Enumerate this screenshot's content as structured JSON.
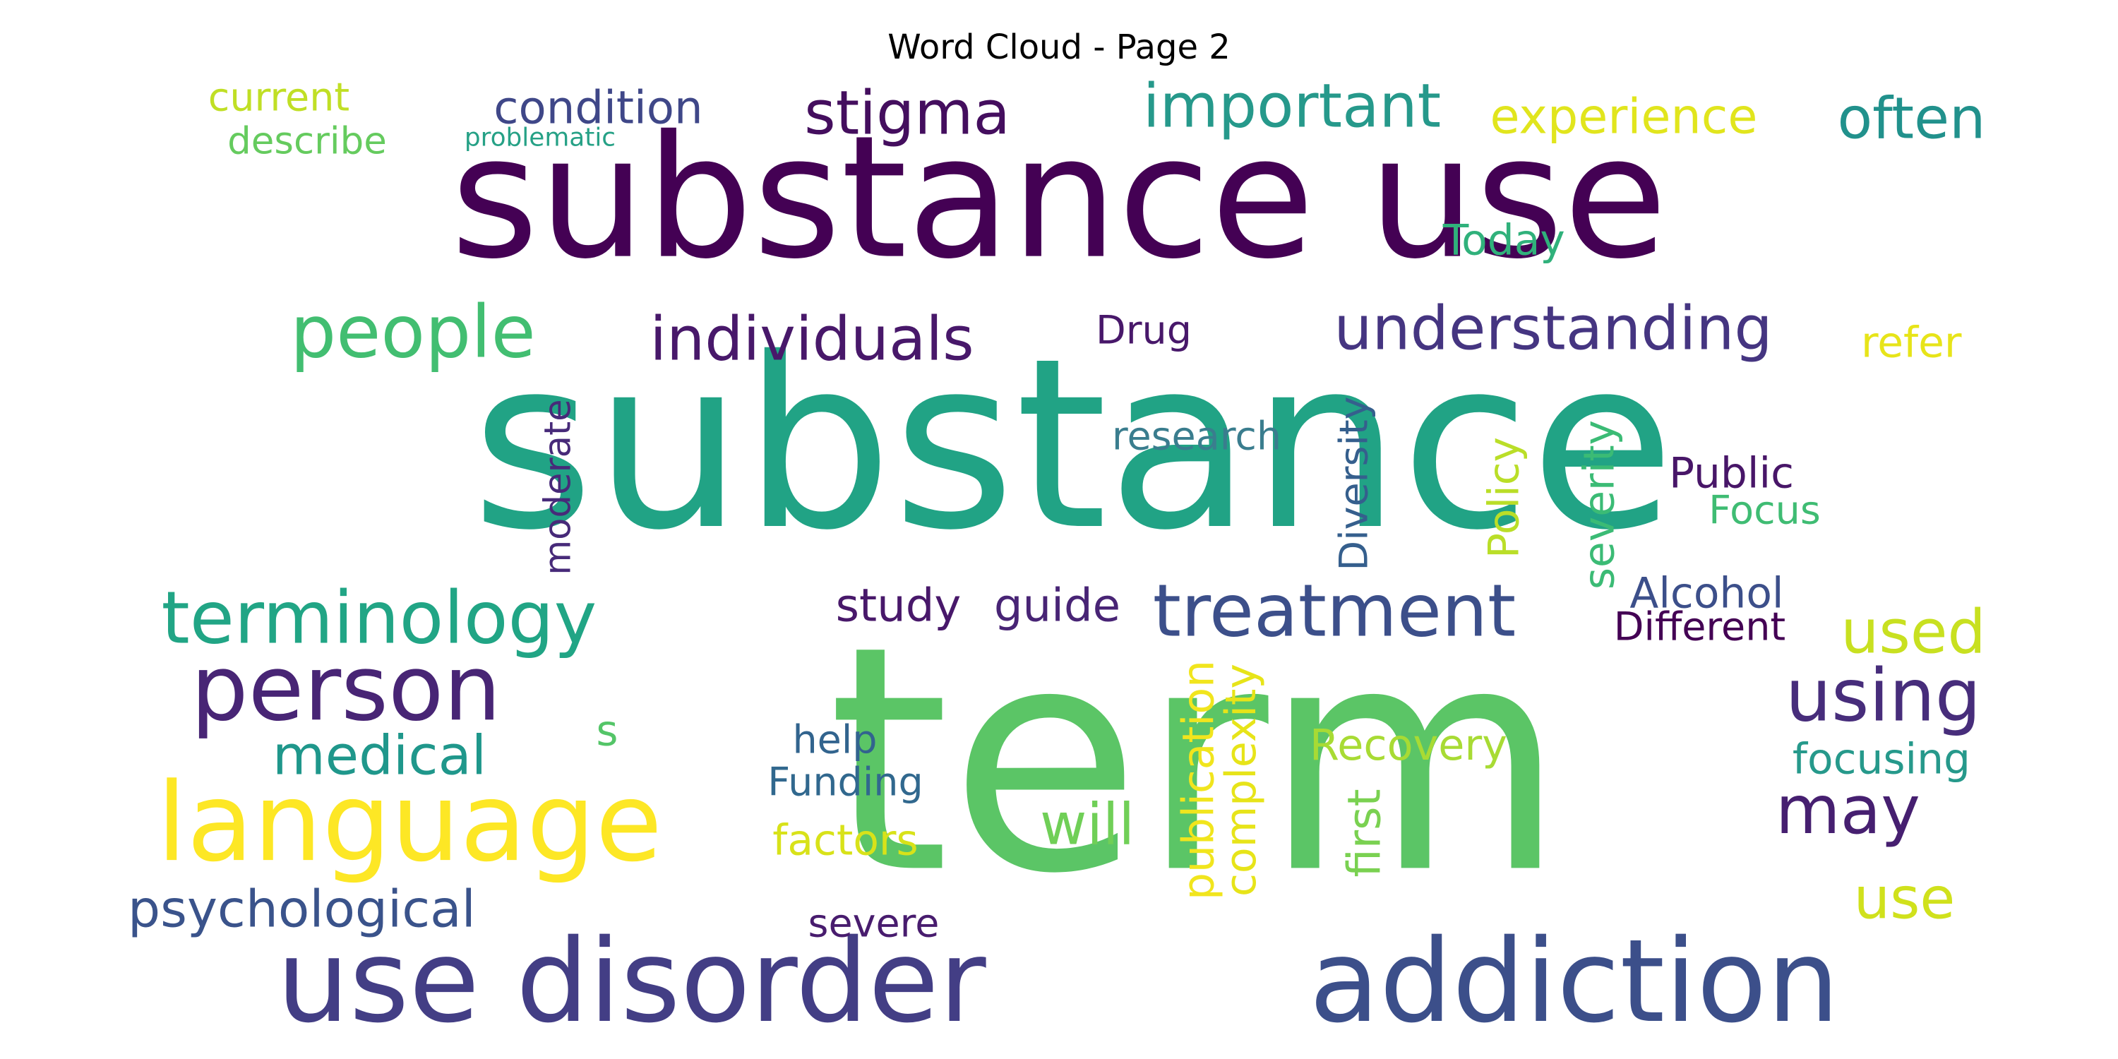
{
  "title": "Word Cloud - Page 2",
  "words": [
    {
      "text": "substance use",
      "color": "#440154"
    },
    {
      "text": "substance",
      "color": "#21a385"
    },
    {
      "text": "term",
      "color": "#5bc566"
    },
    {
      "text": "use disorder",
      "color": "#433e85"
    },
    {
      "text": "addiction",
      "color": "#3c4f8a"
    },
    {
      "text": "language",
      "color": "#fde725"
    },
    {
      "text": "person",
      "color": "#482575"
    },
    {
      "text": "terminology",
      "color": "#21a585"
    },
    {
      "text": "stigma",
      "color": "#440e5e"
    },
    {
      "text": "important",
      "color": "#26998b"
    },
    {
      "text": "often",
      "color": "#21918c"
    },
    {
      "text": "condition",
      "color": "#3f4788"
    },
    {
      "text": "experience",
      "color": "#e1e51d"
    },
    {
      "text": "current",
      "color": "#c0df25"
    },
    {
      "text": "describe",
      "color": "#65cb5e"
    },
    {
      "text": "problematic",
      "color": "#26a186"
    },
    {
      "text": "Today",
      "color": "#30b17b"
    },
    {
      "text": "people",
      "color": "#42be71"
    },
    {
      "text": "individuals",
      "color": "#48186a"
    },
    {
      "text": "understanding",
      "color": "#453581"
    },
    {
      "text": "Drug",
      "color": "#48186a"
    },
    {
      "text": "refer",
      "color": "#e7e419"
    },
    {
      "text": "research",
      "color": "#3a7d8e"
    },
    {
      "text": "moderate",
      "color": "#472a79"
    },
    {
      "text": "Diversity",
      "color": "#355f8d"
    },
    {
      "text": "Policy",
      "color": "#bade28"
    },
    {
      "text": "severity",
      "color": "#3bbb75"
    },
    {
      "text": "Public",
      "color": "#481668"
    },
    {
      "text": "Focus",
      "color": "#3fbc73"
    },
    {
      "text": "treatment",
      "color": "#3c4f8a"
    },
    {
      "text": "study",
      "color": "#48186a"
    },
    {
      "text": "guide",
      "color": "#482475"
    },
    {
      "text": "Alcohol",
      "color": "#3c4f8a"
    },
    {
      "text": "Different",
      "color": "#440154"
    },
    {
      "text": "used",
      "color": "#c8e020"
    },
    {
      "text": "using",
      "color": "#472d7b"
    },
    {
      "text": "medical",
      "color": "#1f978b"
    },
    {
      "text": "s",
      "color": "#54c568"
    },
    {
      "text": "help",
      "color": "#32648e"
    },
    {
      "text": "Funding",
      "color": "#31688e"
    },
    {
      "text": "publication",
      "color": "#f1e51d"
    },
    {
      "text": "complexity",
      "color": "#e7e419"
    },
    {
      "text": "Recovery",
      "color": "#a8db34"
    },
    {
      "text": "first",
      "color": "#7ad151"
    },
    {
      "text": "may",
      "color": "#461f70"
    },
    {
      "text": "focusing",
      "color": "#26998b"
    },
    {
      "text": "will",
      "color": "#70cf57"
    },
    {
      "text": "factors",
      "color": "#d8e219"
    },
    {
      "text": "psychological",
      "color": "#3a538b"
    },
    {
      "text": "severe",
      "color": "#481c6e"
    },
    {
      "text": "use",
      "color": "#d0e11c"
    }
  ]
}
